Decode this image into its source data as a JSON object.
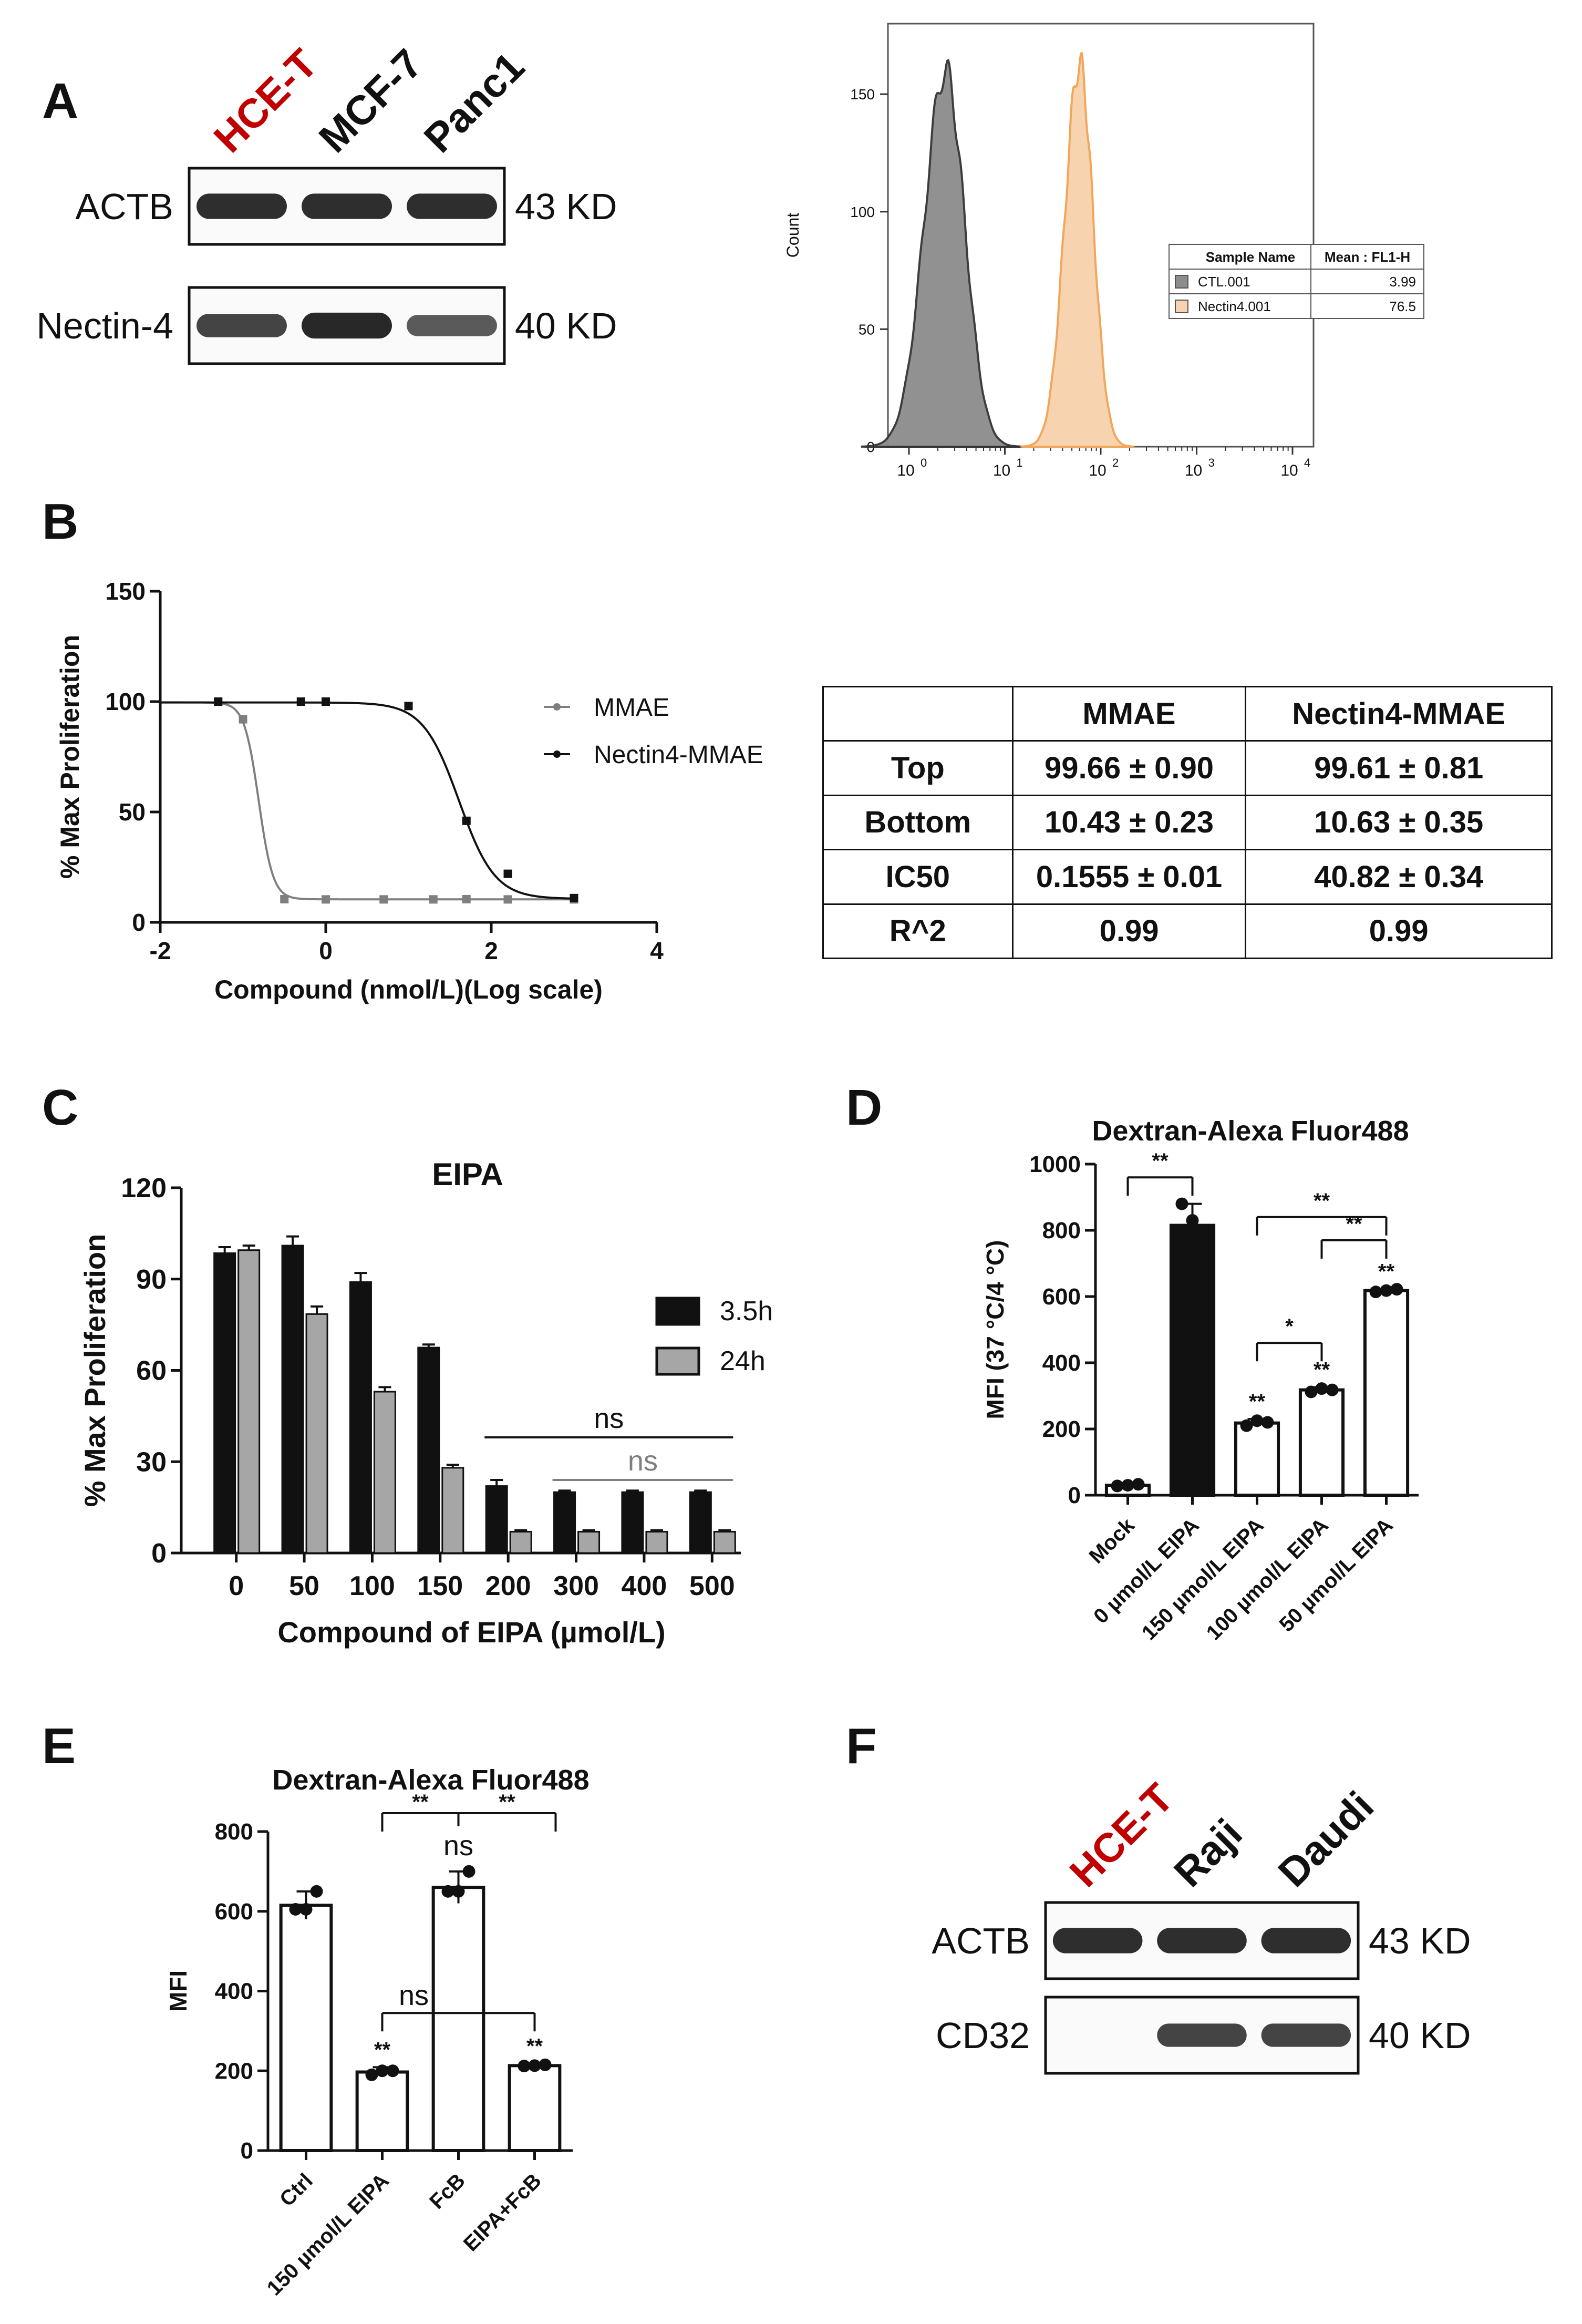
{
  "colors": {
    "text": "#111111",
    "red": "#c00000",
    "ctl_fill": "#8c8c8c",
    "nectin_fill": "#f7d3b0",
    "nectin_stroke": "#f2a65a",
    "gray_bar": "#a6a6a6",
    "black": "#111111"
  },
  "panelA": {
    "letter": "A",
    "blot": {
      "lanes": [
        "HCE-T",
        "MCF-7",
        "Panc1"
      ],
      "lane_colors": [
        "#c00000",
        "#111111",
        "#111111"
      ],
      "rows": [
        {
          "label": "ACTB",
          "size": "43 KD",
          "intensity": [
            0.95,
            0.95,
            0.95
          ]
        },
        {
          "label": "Nectin-4",
          "size": "40 KD",
          "intensity": [
            0.75,
            1.0,
            0.55
          ]
        }
      ]
    },
    "flow": {
      "ylabel": "Count",
      "yticks": [
        0,
        50,
        100,
        150
      ],
      "xticks": [
        {
          "base": "10",
          "exp": "0"
        },
        {
          "base": "10",
          "exp": "1"
        },
        {
          "base": "10",
          "exp": "2"
        },
        {
          "base": "10",
          "exp": "3"
        },
        {
          "base": "10",
          "exp": "4"
        }
      ],
      "legend": {
        "headers": [
          "Sample Name",
          "Mean : FL1-H"
        ],
        "rows": [
          {
            "name": "CTL.001",
            "mean": "3.99"
          },
          {
            "name": "Nectin4.001",
            "mean": "76.5"
          }
        ]
      }
    }
  },
  "panelB": {
    "letter": "B",
    "chart_data": {
      "type": "line",
      "ylabel": "% Max Proliferation",
      "xlabel": "Compound (nmol/L)(Log scale)",
      "xlim": [
        -2,
        4
      ],
      "ylim": [
        0,
        150
      ],
      "xticks": [
        -2,
        0,
        2,
        4
      ],
      "yticks": [
        0,
        50,
        100,
        150
      ],
      "series": [
        {
          "name": "MMAE",
          "color": "#7f7f7f",
          "top": 99.66,
          "bottom": 10.43,
          "logIC50": -0.81,
          "hill": 5,
          "x": [
            -1.3,
            -1.0,
            -0.5,
            0,
            0.7,
            1.3,
            1.7,
            2.2,
            3.0
          ],
          "y": [
            100,
            92,
            10.5,
            10.4,
            10.4,
            10.4,
            10.5,
            10.4,
            10.4
          ]
        },
        {
          "name": "Nectin4-MMAE",
          "color": "#111111",
          "top": 99.61,
          "bottom": 10.63,
          "logIC50": 1.61,
          "hill": 2,
          "x": [
            -1.3,
            -0.3,
            0,
            1.0,
            1.7,
            2.2,
            3.0
          ],
          "y": [
            100,
            100,
            100,
            98,
            46,
            22,
            11
          ]
        }
      ]
    },
    "table": {
      "headers": [
        "",
        "MMAE",
        "Nectin4-MMAE"
      ],
      "rows": [
        [
          "Top",
          "99.66 ± 0.90",
          "99.61 ± 0.81"
        ],
        [
          "Bottom",
          "10.43 ± 0.23",
          "10.63 ± 0.35"
        ],
        [
          "IC50",
          "0.1555 ± 0.01",
          "40.82 ± 0.34"
        ],
        [
          "R^2",
          "0.99",
          "0.99"
        ]
      ]
    }
  },
  "panelC": {
    "letter": "C",
    "chart_data": {
      "type": "bar",
      "title": "EIPA",
      "xlabel": "Compound of EIPA (µmol/L)",
      "ylabel": "% Max Proliferation",
      "ylim": [
        0,
        120
      ],
      "yticks": [
        0,
        30,
        60,
        90,
        120
      ],
      "categories": [
        "0",
        "50",
        "100",
        "150",
        "200",
        "300",
        "400",
        "500"
      ],
      "series": [
        {
          "name": "3.5h",
          "color": "#111111",
          "values": [
            98.5,
            101,
            89,
            67.5,
            22,
            20,
            20,
            20
          ],
          "err": [
            2,
            3,
            3,
            1,
            2,
            0.5,
            0.5,
            0.5
          ]
        },
        {
          "name": "24h",
          "color": "#a6a6a6",
          "values": [
            99.5,
            78.5,
            53,
            28,
            7,
            7,
            7,
            7
          ],
          "err": [
            1.5,
            2.5,
            1.5,
            1,
            0.5,
            0.5,
            0.5,
            0.5
          ]
        }
      ],
      "annotations": [
        {
          "text": "ns",
          "from": "200",
          "to": "500",
          "y": 38,
          "color": "#111111"
        },
        {
          "text": "ns",
          "from": "300",
          "to": "500",
          "y": 24,
          "color": "#7f7f7f"
        }
      ]
    }
  },
  "panelD": {
    "letter": "D",
    "chart_data": {
      "type": "bar",
      "title": "Dextran-Alexa Fluor488",
      "ylabel": "MFI (37 °C/4 °C)",
      "ylim": [
        0,
        1000
      ],
      "yticks": [
        0,
        200,
        400,
        600,
        800,
        1000
      ],
      "categories": [
        "Mock",
        "0 µmol/L EIPA",
        "150 µmol/L EIPA",
        "100 µmol/L EIPA",
        "50 µmol/L EIPA"
      ],
      "values": [
        30,
        815,
        218,
        318,
        618
      ],
      "err": [
        5,
        65,
        12,
        8,
        5
      ],
      "fills": [
        "#ffffff",
        "#111111",
        "#ffffff",
        "#ffffff",
        "#ffffff"
      ],
      "bar_marks": [
        "",
        "",
        "**",
        "**",
        "**"
      ],
      "points": [
        [
          28,
          30,
          33
        ],
        [
          880,
          830,
          770
        ],
        [
          210,
          225,
          220
        ],
        [
          312,
          322,
          318
        ],
        [
          614,
          618,
          622
        ]
      ],
      "brackets": [
        {
          "from": 0,
          "to": 1,
          "y": 960,
          "text": "**"
        },
        {
          "from": 2,
          "to": 4,
          "y": 840,
          "text": "**"
        },
        {
          "from": 3,
          "to": 4,
          "y": 770,
          "text": "**"
        },
        {
          "from": 2,
          "to": 3,
          "y": 460,
          "text": "*"
        }
      ]
    }
  },
  "panelE": {
    "letter": "E",
    "chart_data": {
      "type": "bar",
      "title": "Dextran-Alexa Fluor488",
      "ylabel": "MFI",
      "ylim": [
        0,
        800
      ],
      "yticks": [
        0,
        200,
        400,
        600,
        800
      ],
      "categories": [
        "Ctrl",
        "150 µmol/L EIPA",
        "FcB",
        "EIPA+FcB"
      ],
      "values": [
        615,
        197,
        660,
        213
      ],
      "err": [
        35,
        12,
        40,
        5
      ],
      "bar_marks": [
        "",
        "**",
        "",
        "**"
      ],
      "points": [
        [
          605,
          605,
          650
        ],
        [
          190,
          200,
          200
        ],
        [
          650,
          650,
          700
        ],
        [
          212,
          213,
          215
        ]
      ],
      "brackets": [
        {
          "type": "top",
          "from": 1,
          "mid": 2,
          "to": 3,
          "y": 800,
          "left_text": "**",
          "right_text": "**",
          "center_text": "ns"
        },
        {
          "type": "flat",
          "from": 1,
          "to": 3,
          "y": 345,
          "text": "ns"
        }
      ]
    }
  },
  "panelF": {
    "letter": "F",
    "blot": {
      "lanes": [
        "HCE-T",
        "Raji",
        "Daudi"
      ],
      "lane_colors": [
        "#c00000",
        "#111111",
        "#111111"
      ],
      "rows": [
        {
          "label": "ACTB",
          "size": "43 KD",
          "intensity": [
            0.95,
            0.95,
            0.95
          ]
        },
        {
          "label": "CD32",
          "size": "40 KD",
          "intensity": [
            0,
            0.75,
            0.75
          ]
        }
      ]
    }
  }
}
